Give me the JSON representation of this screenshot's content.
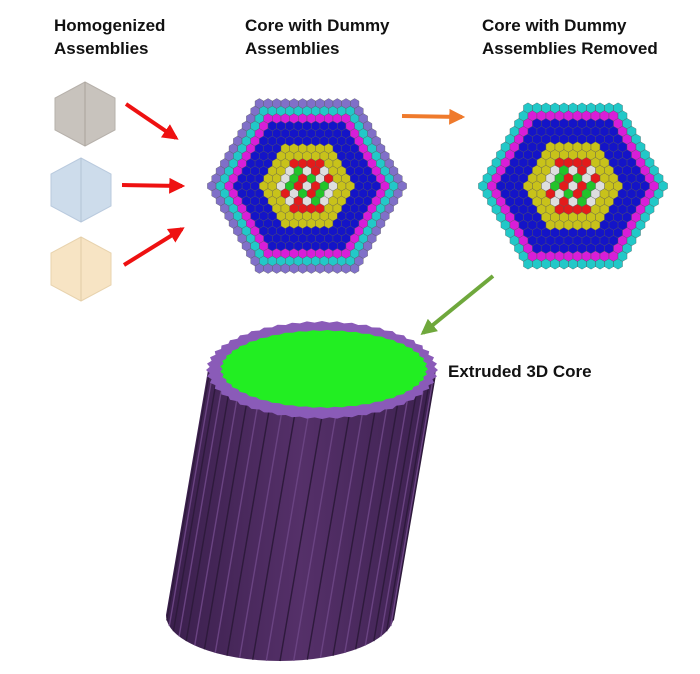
{
  "labels": {
    "homogenized": [
      "Homogenized",
      "Assemblies"
    ],
    "dummy": [
      "Core with Dummy",
      "Assemblies"
    ],
    "removed": [
      "Core with Dummy",
      "Assemblies Removed"
    ],
    "extruded": "Extruded 3D Core"
  },
  "colors": {
    "assembly_gray": "#c8c3bd",
    "assembly_blue": "#cddceb",
    "assembly_tan": "#f7e4c4",
    "fuel_red": "#e31b1b",
    "fuel_green": "#22c42a",
    "fuel_white": "#dedede",
    "yellow": "#c8c21a",
    "blue": "#1414c8",
    "magenta": "#d81ed8",
    "cyan": "#22c8c8",
    "dummy": "#8070c8",
    "arrow_red": "#ee1111",
    "arrow_orange": "#ef7a2c",
    "arrow_green": "#6fa83c",
    "core_top": "#22ee22",
    "core_rim": "#8a5bb8",
    "core_side": "#4a2a5e"
  }
}
